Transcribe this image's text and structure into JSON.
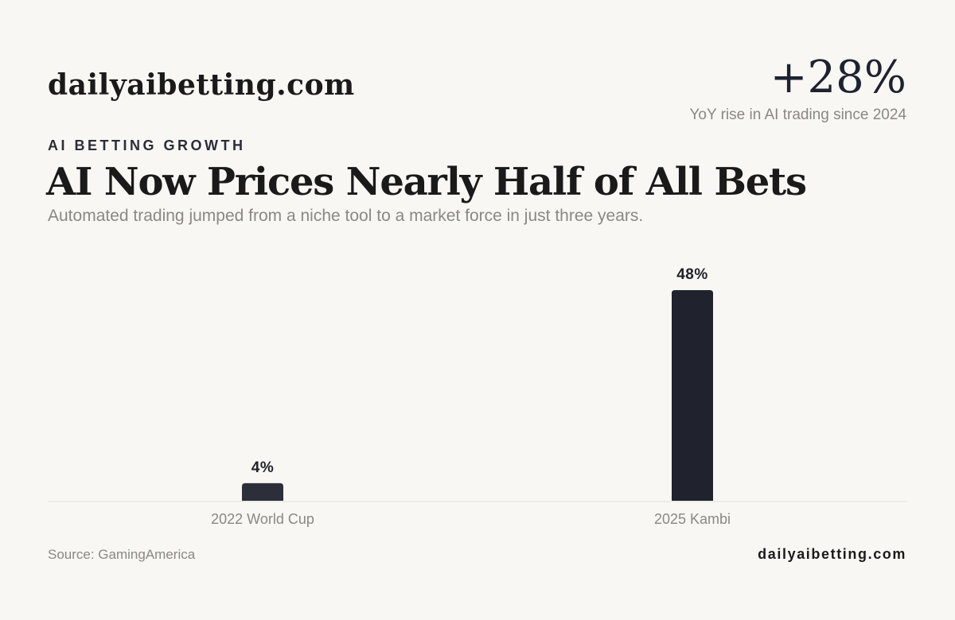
{
  "brand": {
    "name": "dailyaibetting.com",
    "footer_name": "dailyaibetting.com"
  },
  "stat": {
    "value": "+28%",
    "caption": "YoY rise in AI trading since 2024"
  },
  "header": {
    "eyebrow": "AI BETTING GROWTH",
    "title": "AI Now Prices Nearly Half of All Bets",
    "subtitle": "Automated trading jumped from a niche tool to a market force in just three years."
  },
  "footer": {
    "source": "Source: GamingAmerica"
  },
  "colors": {
    "background": "#f8f7f4",
    "bar": "#20232e",
    "bar_small": "#2c2f39",
    "muted_text": "#8c8783",
    "baseline": "#e3e0da"
  },
  "chart_data": {
    "type": "bar",
    "categories": [
      "2022 World Cup",
      "2025 Kambi"
    ],
    "values": [
      4,
      48
    ],
    "value_labels": [
      "4%",
      "48%"
    ],
    "title": "AI Now Prices Nearly Half of All Bets",
    "xlabel": "",
    "ylabel": "",
    "unit": "%",
    "ylim": [
      0,
      48
    ],
    "grid": false,
    "legend": "none"
  }
}
